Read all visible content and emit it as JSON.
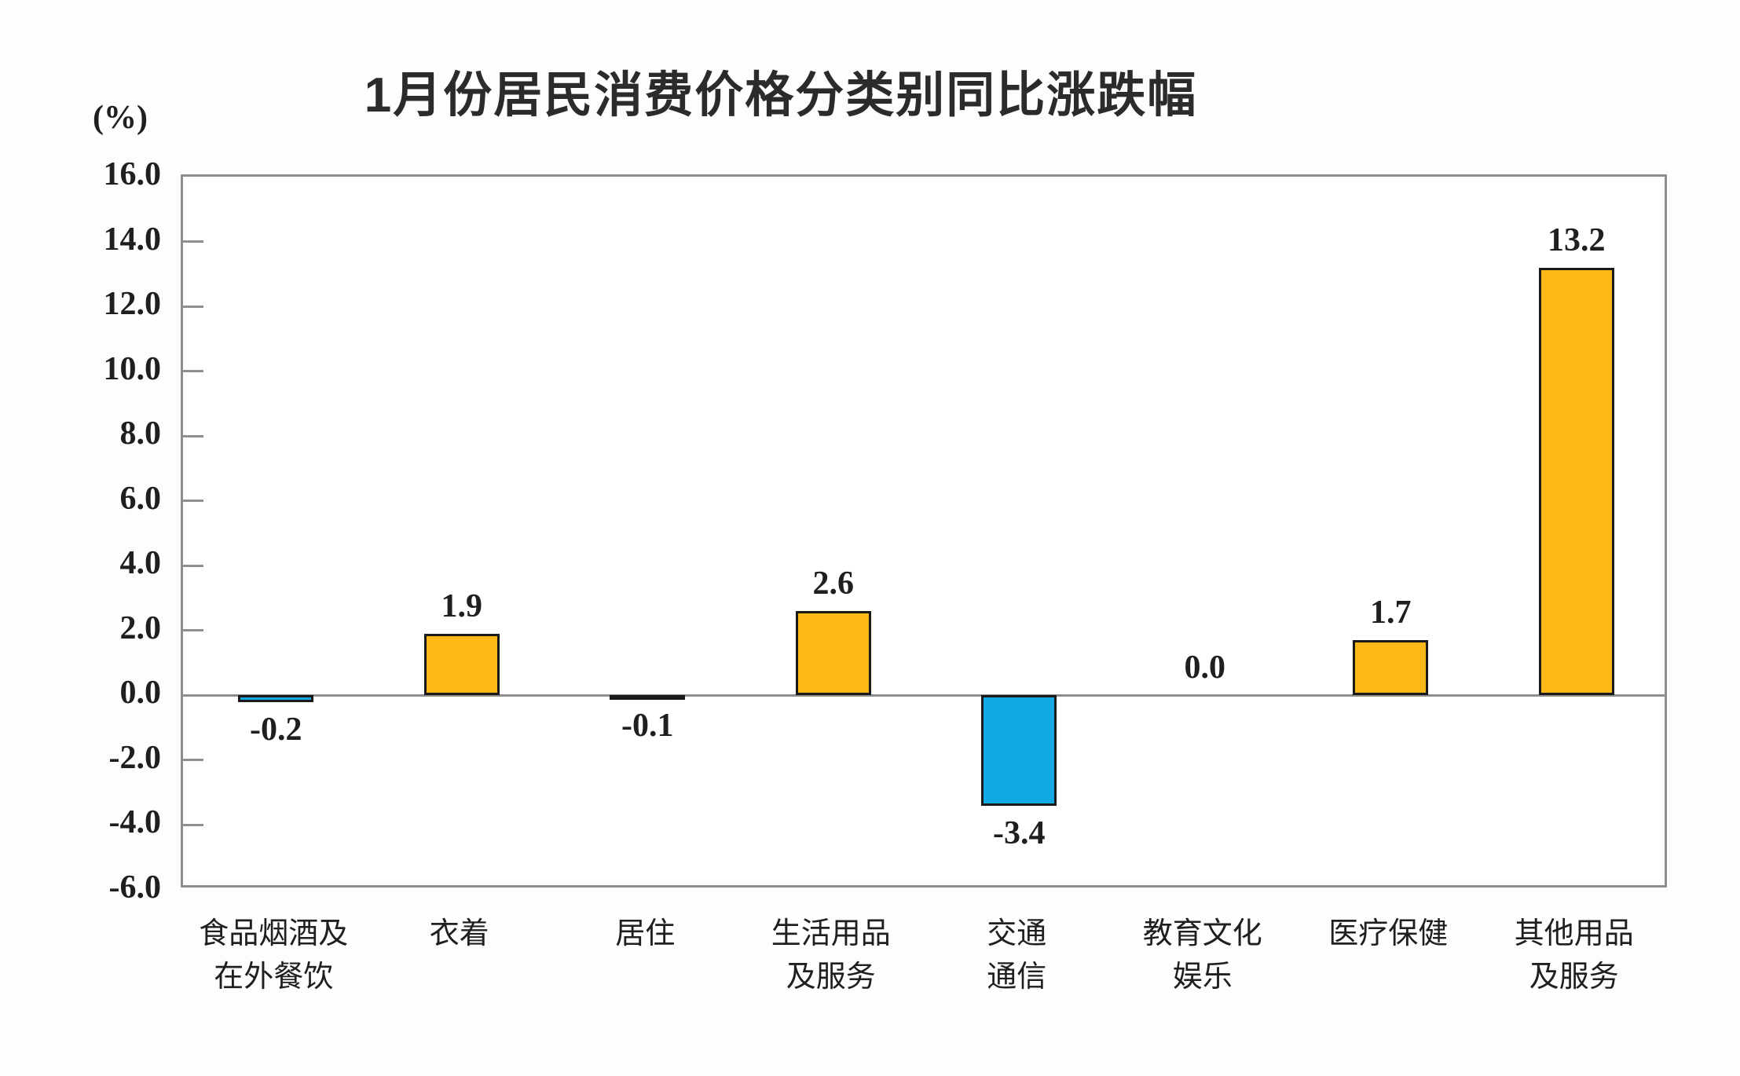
{
  "page": {
    "background": "#FDFDFD"
  },
  "chart_data": {
    "type": "bar",
    "title": "1月份居民消费价格分类别同比涨跌幅",
    "unit_label": "(%)",
    "categories": [
      "食品烟酒及\n在外餐饮",
      "衣着",
      "居住",
      "生活用品\n及服务",
      "交通\n通信",
      "教育文化\n娱乐",
      "医疗保健",
      "其他用品\n及服务"
    ],
    "values": [
      -0.2,
      1.9,
      -0.1,
      2.6,
      -3.4,
      0.0,
      1.7,
      13.2
    ],
    "value_labels": [
      "-0.2",
      "1.9",
      "-0.1",
      "2.6",
      "-3.4",
      "0.0",
      "1.7",
      "13.2"
    ],
    "ylim": [
      -6.0,
      16.0
    ],
    "ytick_step": 2.0,
    "ytick_labels": [
      "16.0",
      "14.0",
      "12.0",
      "10.0",
      "8.0",
      "6.0",
      "4.0",
      "2.0",
      "0.0",
      "-2.0",
      "-4.0",
      "-6.0"
    ],
    "grid": false,
    "legend": null,
    "colors": {
      "positive_bar": "#FBB817",
      "negative_bar": "#12A9E5",
      "bar_border": "#1A1A1A",
      "axis": "#8E8E8E",
      "label_text": "#1F1F1F",
      "title_text": "#2B2B2B"
    }
  }
}
